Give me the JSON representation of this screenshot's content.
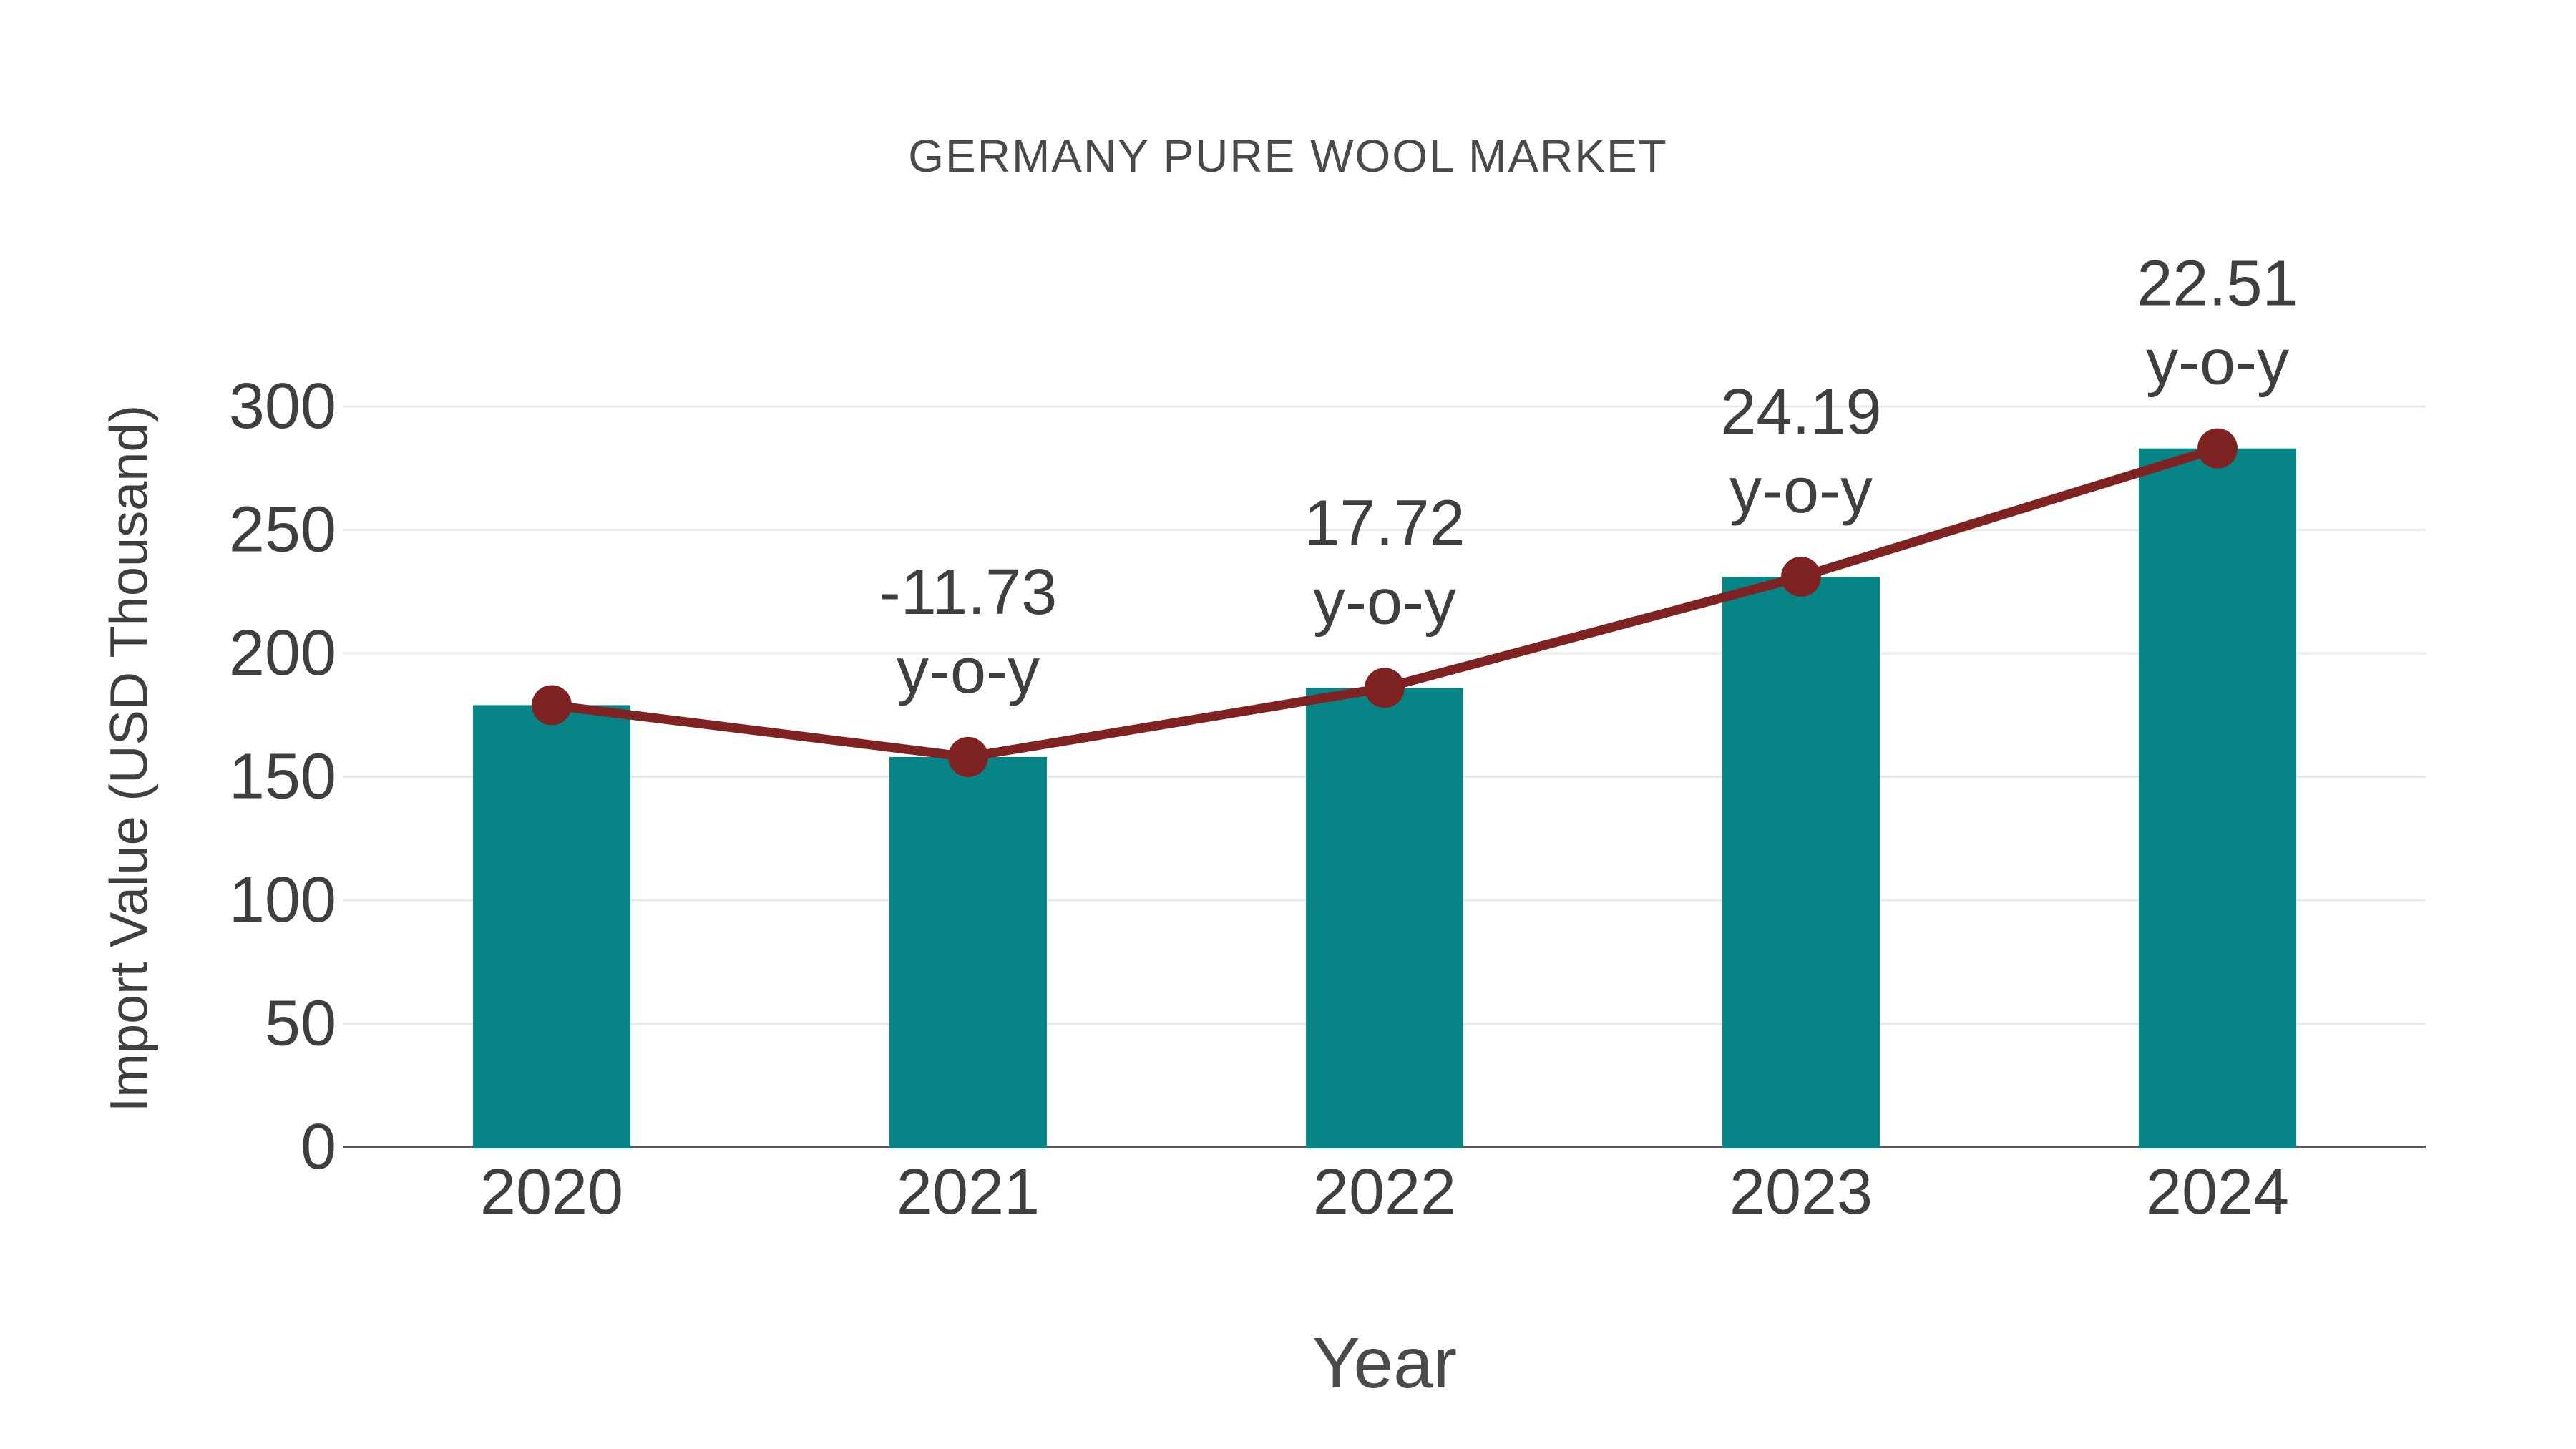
{
  "chart_data": {
    "type": "bar",
    "title": "GERMANY PURE WOOL MARKET",
    "xlabel": "Year",
    "ylabel": "Import Value (USD Thousand)",
    "categories": [
      "2020",
      "2021",
      "2022",
      "2023",
      "2024"
    ],
    "series": [
      {
        "name": "Import Value (USD Thousand)",
        "type": "bar",
        "values": [
          179,
          158,
          186,
          231,
          283
        ]
      },
      {
        "name": "y-o-y change (%)",
        "type": "line",
        "values": [
          179,
          158,
          186,
          231,
          283
        ],
        "percent_change": [
          null,
          -11.73,
          17.72,
          24.19,
          22.51
        ],
        "point_labels": [
          null,
          [
            "-11.73",
            "y-o-y"
          ],
          [
            "17.72",
            "y-o-y"
          ],
          [
            "24.19",
            "y-o-y"
          ],
          [
            "22.51",
            "y-o-y"
          ]
        ]
      }
    ],
    "yticks": [
      0,
      50,
      100,
      150,
      200,
      250,
      300
    ],
    "ylim": [
      0,
      300
    ],
    "grid": true,
    "legend_position": "none",
    "colors": {
      "bar": "#068486",
      "line": "#7e2222",
      "marker": "#7e2222",
      "gridline": "#e8e8e8",
      "axis_line": "#58585a",
      "tick_text": "#3f3f3f",
      "title_text": "#4a4a4a",
      "background": "#ffffff"
    }
  }
}
